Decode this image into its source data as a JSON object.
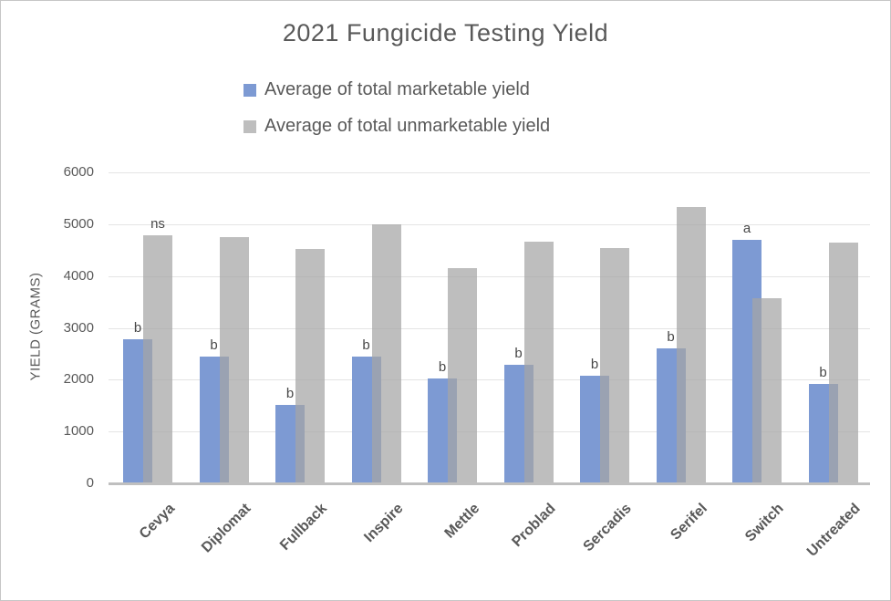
{
  "frame": {
    "background": "#ffffff",
    "border_color": "#c6c6c6"
  },
  "chart_data": {
    "type": "bar",
    "title": "2021 Fungicide Testing Yield",
    "ylabel": "YIELD (GRAMS)",
    "xlabel": "",
    "ylim": [
      0,
      6000
    ],
    "ytick_interval": 1000,
    "yticks": [
      0,
      1000,
      2000,
      3000,
      4000,
      5000,
      6000
    ],
    "grid": true,
    "legend_position": "top",
    "categories": [
      "Cevya",
      "Diplomat",
      "Fullback",
      "Inspire",
      "Mettle",
      "Problad",
      "Sercadis",
      "Serifel",
      "Switch",
      "Untreated"
    ],
    "series": [
      {
        "name": "Average of total marketable yield",
        "color": "#7D9AD3",
        "opacity": 1,
        "values": [
          2780,
          2450,
          1520,
          2440,
          2020,
          2290,
          2080,
          2600,
          4700,
          1910
        ],
        "point_labels": [
          "b",
          "b",
          "b",
          "b",
          "b",
          "b",
          "b",
          "b",
          "a",
          "b"
        ]
      },
      {
        "name": "Average of total unmarketable yield",
        "color": "#A5A5A5",
        "opacity": 0.72,
        "values": [
          4790,
          4750,
          4520,
          5000,
          4150,
          4670,
          4540,
          5330,
          3580,
          4640
        ],
        "point_labels": [
          "ns",
          "",
          "",
          "",
          "",
          "",
          "",
          "",
          "",
          ""
        ]
      }
    ],
    "colors": {
      "grid": "#e4e4e4",
      "axis_line": "#bfbfbf",
      "text": "#595959",
      "point_label_text": "#474747"
    }
  }
}
